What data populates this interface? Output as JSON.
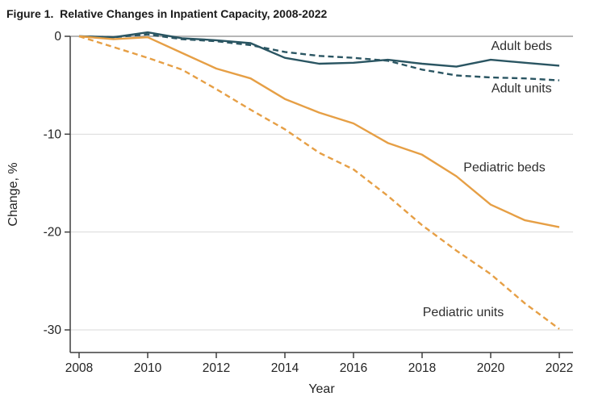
{
  "figure": {
    "title": "Figure 1.  Relative Changes in Inpatient Capacity, 2008-2022"
  },
  "colors": {
    "adult_line": "#2a5562",
    "pediatric_line": "#e69f45",
    "axis": "#3f3f3f",
    "grid_minor": "#d9d9d9",
    "grid_zero": "#9e9e9e",
    "tick_text": "#232323",
    "annotation_text": "#2e2e2e"
  },
  "chart_data": {
    "type": "line",
    "title": "Figure 1.  Relative Changes in Inpatient Capacity, 2008-2022",
    "xlabel": "Year",
    "ylabel": "Change, %",
    "x": [
      2008,
      2009,
      2010,
      2011,
      2012,
      2013,
      2014,
      2015,
      2016,
      2017,
      2018,
      2019,
      2020,
      2021,
      2022
    ],
    "xticks": [
      2008,
      2010,
      2012,
      2014,
      2016,
      2018,
      2020,
      2022
    ],
    "yticks": [
      0,
      -10,
      -20,
      -30
    ],
    "ylim": [
      -32.3,
      0.6
    ],
    "xlim": [
      2007.7,
      2022.4
    ],
    "grid": "horizontal-only",
    "legend": "inline-labels",
    "series": [
      {
        "name": "Adult beds",
        "color_key": "adult_line",
        "dash": "solid",
        "values": [
          0,
          -0.1,
          0.4,
          -0.2,
          -0.4,
          -0.7,
          -2.2,
          -2.8,
          -2.7,
          -2.4,
          -2.8,
          -3.1,
          -2.4,
          -2.7,
          -3.0
        ]
      },
      {
        "name": "Adult units",
        "color_key": "adult_line",
        "dash": "dashed",
        "values": [
          0,
          -0.1,
          0.2,
          -0.3,
          -0.5,
          -0.9,
          -1.6,
          -2.0,
          -2.2,
          -2.5,
          -3.4,
          -4.0,
          -4.2,
          -4.3,
          -4.5
        ]
      },
      {
        "name": "Pediatric beds",
        "color_key": "pediatric_line",
        "dash": "solid",
        "values": [
          0,
          -0.3,
          -0.1,
          -1.7,
          -3.3,
          -4.3,
          -6.4,
          -7.8,
          -8.9,
          -10.9,
          -12.1,
          -14.3,
          -17.2,
          -18.8,
          -19.5
        ]
      },
      {
        "name": "Pediatric units",
        "color_key": "pediatric_line",
        "dash": "dashed",
        "values": [
          0,
          -1.1,
          -2.2,
          -3.4,
          -5.4,
          -7.5,
          -9.5,
          -11.9,
          -13.6,
          -16.3,
          -19.3,
          -21.9,
          -24.3,
          -27.3,
          -29.9
        ]
      }
    ],
    "annotations": [
      {
        "text": "Adult beds",
        "x": 2020.9,
        "y": -1.0
      },
      {
        "text": "Adult units",
        "x": 2020.9,
        "y": -5.3
      },
      {
        "text": "Pediatric beds",
        "x": 2020.4,
        "y": -13.4
      },
      {
        "text": "Pediatric units",
        "x": 2019.2,
        "y": -28.2
      }
    ]
  }
}
